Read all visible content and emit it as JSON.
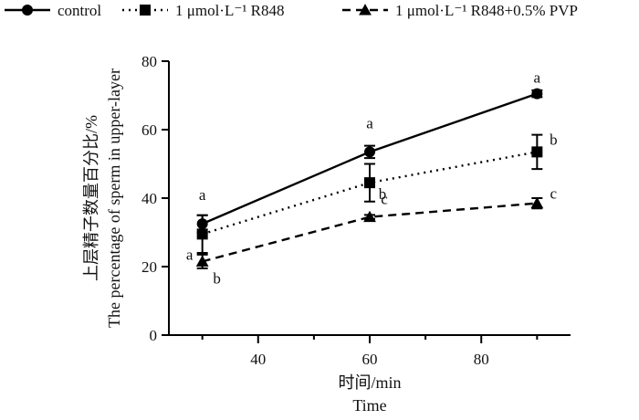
{
  "chart_data": {
    "type": "line",
    "x": [
      30,
      60,
      90
    ],
    "xlim": [
      24,
      96
    ],
    "ylim": [
      0,
      80
    ],
    "xticks": [
      "40",
      "60",
      "80"
    ],
    "yticks": [
      "0",
      "20",
      "40",
      "60",
      "80"
    ],
    "xlabel": [
      "时间/min",
      "Time"
    ],
    "ylabel": [
      "上层精子数量百分比/%",
      "The percentage of sperm in upper-layer"
    ],
    "legend_position": "top",
    "grid": false,
    "series": [
      {
        "name": "control",
        "marker": "circle",
        "line_style": "solid",
        "values": [
          32.5,
          53.5,
          70.5
        ],
        "errors": [
          2.5,
          1.8,
          1.0
        ],
        "significance": [
          "a",
          "a",
          "a"
        ]
      },
      {
        "name": "1 μmol·L⁻¹ R848",
        "marker": "square",
        "line_style": "dotted",
        "values": [
          29.5,
          44.5,
          53.5
        ],
        "errors": [
          5.5,
          5.5,
          5.0
        ],
        "significance": [
          "a",
          "b",
          "b"
        ]
      },
      {
        "name": "1 μmol·L⁻¹ R848+0.5% PVP",
        "marker": "triangle",
        "line_style": "dashed",
        "values": [
          21.5,
          34.5,
          38.5
        ],
        "errors": [
          2.0,
          0.6,
          1.5
        ],
        "significance": [
          "b",
          "c",
          "c"
        ]
      }
    ]
  }
}
